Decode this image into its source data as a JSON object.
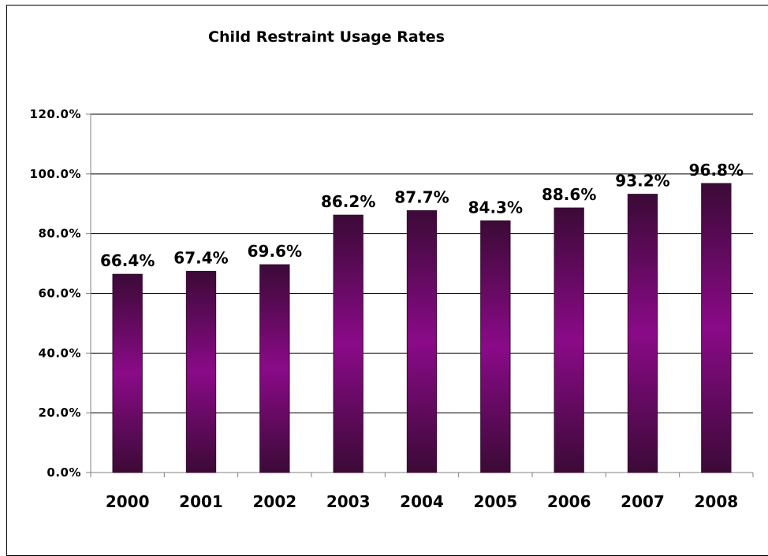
{
  "chart_data": {
    "type": "bar",
    "title": "Child Restraint Usage Rates",
    "xlabel": "",
    "ylabel": "",
    "categories": [
      "2000",
      "2001",
      "2002",
      "2003",
      "2004",
      "2005",
      "2006",
      "2007",
      "2008"
    ],
    "values": [
      66.4,
      67.4,
      69.6,
      86.2,
      87.7,
      84.3,
      88.6,
      93.2,
      96.8
    ],
    "data_labels": [
      "66.4%",
      "67.4%",
      "69.6%",
      "86.2%",
      "87.7%",
      "84.3%",
      "88.6%",
      "93.2%",
      "96.8%"
    ],
    "ylim": [
      0,
      120
    ],
    "yticks": [
      0,
      20,
      40,
      60,
      80,
      100,
      120
    ],
    "ytick_labels": [
      "0.0%",
      "20.0%",
      "40.0%",
      "60.0%",
      "80.0%",
      "100.0%",
      "120.0%"
    ],
    "grid": true,
    "legend": "none",
    "colors": {
      "bar_edge": "#3a0a33",
      "bar_center": "#8a0a88",
      "bar_outer": "#3b0a36",
      "gridline": "#000000",
      "axis": "#808080",
      "text": "#000000"
    }
  }
}
